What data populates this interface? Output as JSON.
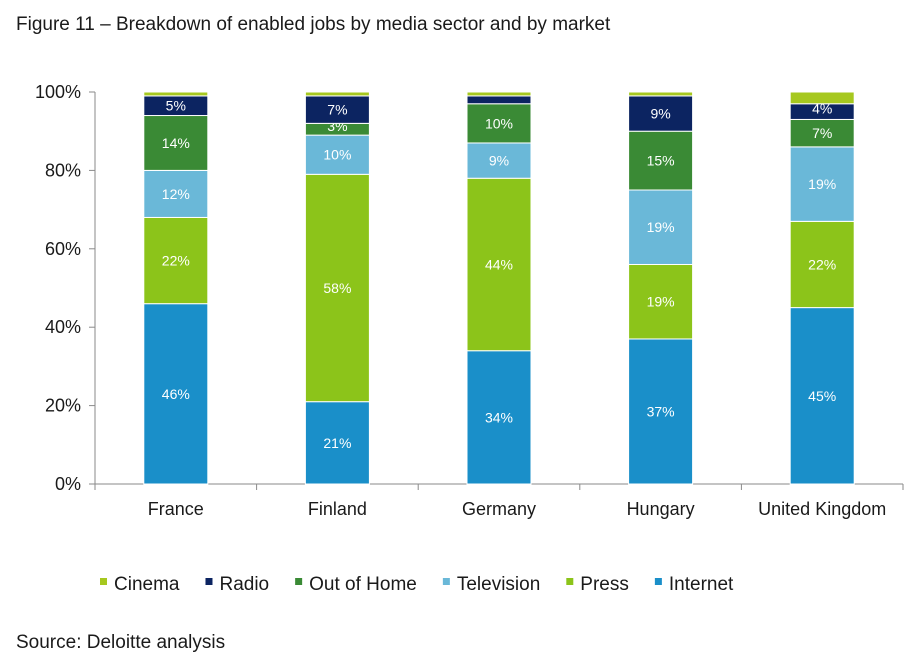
{
  "figure_title": "Figure 11 – Breakdown of enabled jobs by media sector and by market",
  "source": "Source: Deloitte analysis",
  "chart_data": {
    "type": "bar",
    "stacked": true,
    "percent_stacked": true,
    "title": "Figure 11 – Breakdown of enabled jobs by media sector and by market",
    "xlabel": "",
    "ylabel": "",
    "ylim": [
      0,
      100
    ],
    "yticks": [
      "0%",
      "20%",
      "40%",
      "60%",
      "80%",
      "100%"
    ],
    "categories": [
      "France",
      "Finland",
      "Germany",
      "Hungary",
      "United Kingdom"
    ],
    "series": [
      {
        "name": "Internet",
        "color": "#1a8fc9",
        "label_color": "#ffffff",
        "values": [
          46,
          21,
          34,
          37,
          45
        ],
        "labels": [
          "46%",
          "21%",
          "34%",
          "37%",
          "45%"
        ]
      },
      {
        "name": "Press",
        "color": "#8cc41a",
        "label_color": "#ffffff",
        "values": [
          22,
          58,
          44,
          19,
          22
        ],
        "labels": [
          "22%",
          "58%",
          "44%",
          "19%",
          "22%"
        ]
      },
      {
        "name": "Television",
        "color": "#6ab8d8",
        "label_color": "#ffffff",
        "values": [
          12,
          10,
          9,
          19,
          19
        ],
        "labels": [
          "12%",
          "10%",
          "9%",
          "19%",
          "19%"
        ]
      },
      {
        "name": "Out of Home",
        "color": "#3a8a35",
        "label_color": "#ffffff",
        "values": [
          14,
          3,
          10,
          15,
          7
        ],
        "labels": [
          "14%",
          "3%",
          "10%",
          "15%",
          "7%"
        ]
      },
      {
        "name": "Radio",
        "color": "#0c2461",
        "label_color": "#ffffff",
        "values": [
          5,
          7,
          2,
          9,
          4
        ],
        "labels": [
          "5%",
          "7%",
          "",
          "9%",
          "4%"
        ]
      },
      {
        "name": "Cinema",
        "color": "#a6c81f",
        "label_color": "#ffffff",
        "values": [
          1,
          1,
          1,
          1,
          3
        ],
        "labels": [
          "",
          "",
          "",
          "",
          ""
        ]
      }
    ],
    "legend": {
      "position": "bottom",
      "entries": [
        "Cinema",
        "Radio",
        "Out of Home",
        "Television",
        "Press",
        "Internet"
      ]
    },
    "grid": false
  }
}
